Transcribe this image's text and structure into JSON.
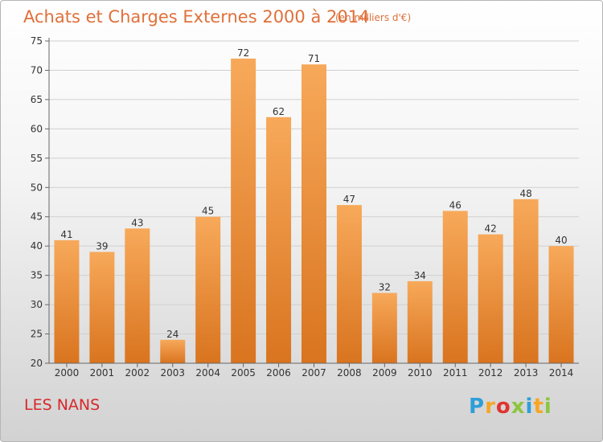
{
  "chart_data": {
    "type": "bar",
    "title": "Achats et Charges Externes 2000 à 2014",
    "subtitle": "(en milliers d'€)",
    "categories": [
      "2000",
      "2001",
      "2002",
      "2003",
      "2004",
      "2005",
      "2006",
      "2007",
      "2008",
      "2009",
      "2010",
      "2011",
      "2012",
      "2013",
      "2014"
    ],
    "values": [
      41,
      39,
      43,
      24,
      45,
      72,
      62,
      71,
      47,
      32,
      34,
      46,
      42,
      48,
      40
    ],
    "ylim": [
      20,
      75
    ],
    "yticks": [
      20,
      25,
      30,
      35,
      40,
      45,
      50,
      55,
      60,
      65,
      70,
      75
    ],
    "grid": true,
    "bar_color": "#f0933a"
  },
  "place": "LES NANS",
  "logo": {
    "letters": [
      "P",
      "r",
      "o",
      "x",
      "i",
      "t",
      "i"
    ],
    "colors": [
      "#2e9fd8",
      "#f6a623",
      "#e0342f",
      "#8cc63f",
      "#2e9fd8",
      "#f6a623",
      "#8cc63f"
    ]
  }
}
